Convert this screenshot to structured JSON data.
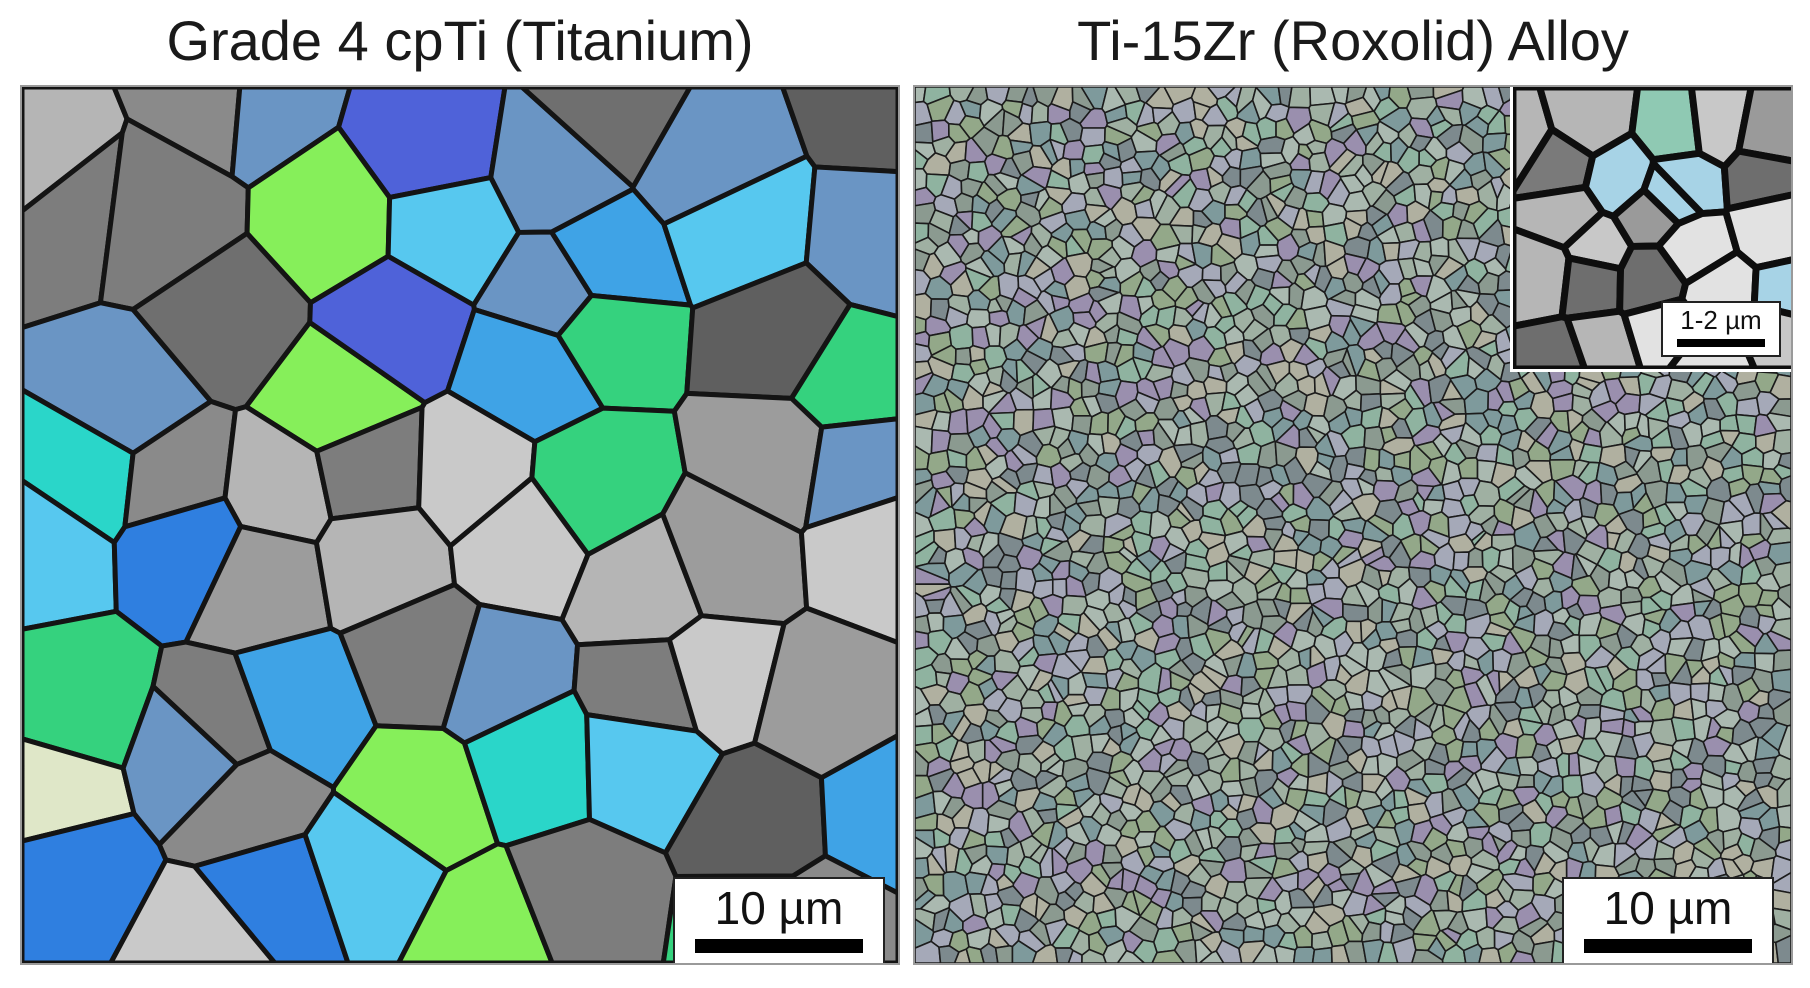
{
  "left_panel": {
    "title": "Grade 4 cpTi (Titanium)",
    "scale_bar_label": "10 µm"
  },
  "right_panel": {
    "title": "Ti-15Zr (Roxolid) Alloy",
    "scale_bar_label": "10 µm",
    "inset": {
      "scale_bar_label": "1-2 µm"
    }
  }
}
